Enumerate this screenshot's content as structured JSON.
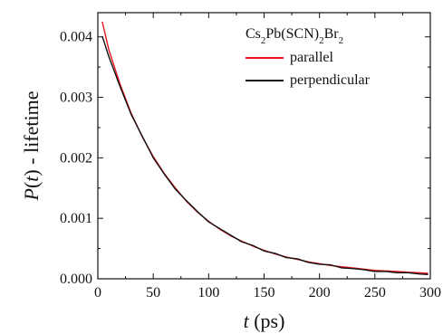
{
  "chart_data": {
    "type": "line",
    "xlabel": {
      "italic": "t",
      "rest": " (ps)"
    },
    "ylabel": {
      "italic_p": "P",
      "open": "(",
      "italic_t": "t",
      "close": ")",
      "rest": " - lifetime"
    },
    "xlim": [
      0,
      300
    ],
    "ylim": [
      0,
      0.0044
    ],
    "x_ticks": [
      0,
      50,
      100,
      150,
      200,
      250,
      300
    ],
    "x_tick_labels": [
      "0",
      "50",
      "100",
      "150",
      "200",
      "250",
      "300"
    ],
    "y_ticks": [
      0,
      0.001,
      0.002,
      0.003,
      0.004
    ],
    "y_tick_labels": [
      "0.000",
      "0.001",
      "0.002",
      "0.003",
      "0.004"
    ],
    "grid": false,
    "legend_position": "top-right",
    "legend_title": {
      "base": "Cs",
      "s1": "2",
      "b2": "Pb(SCN)",
      "s2": "2",
      "b3": "Br",
      "s3": "2"
    },
    "series": [
      {
        "name": "parallel",
        "color": "#e8141c",
        "x": [
          4,
          10,
          20,
          30,
          40,
          50,
          60,
          70,
          80,
          90,
          100,
          110,
          120,
          130,
          140,
          150,
          160,
          170,
          180,
          190,
          200,
          210,
          220,
          230,
          240,
          250,
          260,
          270,
          280,
          290,
          298
        ],
        "y": [
          0.00425,
          0.00378,
          0.00322,
          0.00274,
          0.00235,
          0.00202,
          0.00174,
          0.0015,
          0.00128,
          0.0011,
          0.00095,
          0.00082,
          0.00071,
          0.00062,
          0.00054,
          0.00047,
          0.00041,
          0.00036,
          0.00032,
          0.00028,
          0.00025,
          0.00022,
          0.0002,
          0.00018,
          0.00016,
          0.00014,
          0.00013,
          0.00012,
          0.00011,
          0.0001,
          9e-05
        ]
      },
      {
        "name": "perpendicular",
        "color": "#111111",
        "x": [
          4,
          10,
          20,
          30,
          40,
          50,
          60,
          70,
          80,
          90,
          100,
          110,
          120,
          130,
          140,
          150,
          160,
          170,
          180,
          190,
          200,
          210,
          220,
          230,
          240,
          250,
          260,
          270,
          280,
          290,
          298
        ],
        "y": [
          0.00401,
          0.00367,
          0.00318,
          0.00272,
          0.00236,
          0.002,
          0.00173,
          0.00148,
          0.00129,
          0.00111,
          0.00094,
          0.00083,
          0.00072,
          0.00061,
          0.00055,
          0.00046,
          0.00042,
          0.00035,
          0.00033,
          0.00027,
          0.00024,
          0.00023,
          0.00018,
          0.00017,
          0.00015,
          0.00012,
          0.00012,
          0.0001,
          0.0001,
          8e-05,
          7e-05
        ]
      }
    ]
  }
}
